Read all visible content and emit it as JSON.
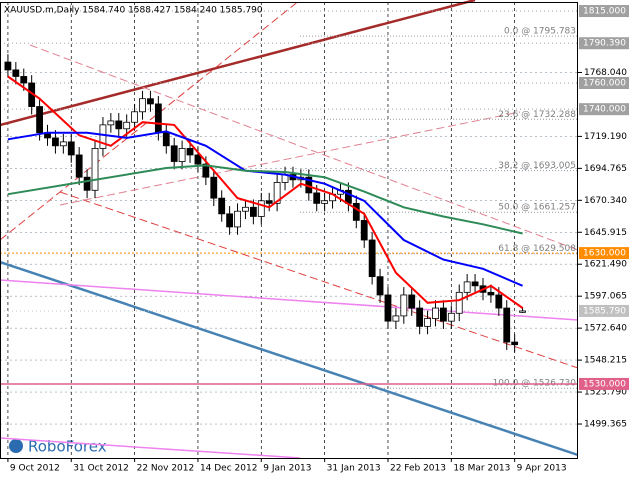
{
  "chart_data": {
    "type": "candlestick",
    "title": "XAUUSD.m,Daily  1584.740 1588.427 1584.240 1585.790",
    "watermark": "RoboForex",
    "open": [
      1776,
      1770,
      1765,
      1760,
      1742,
      1722,
      1718,
      1712,
      1715,
      1705,
      1688,
      1678,
      1710,
      1728,
      1731,
      1725,
      1730,
      1738,
      1748,
      1744,
      1722,
      1712,
      1700,
      1710,
      1705,
      1698,
      1688,
      1672,
      1660,
      1650,
      1662,
      1665,
      1658,
      1670,
      1668,
      1684,
      1690,
      1686,
      1688,
      1676,
      1668,
      1670,
      1675,
      1678,
      1668,
      1655,
      1640,
      1612,
      1598,
      1578,
      1582,
      1598,
      1588,
      1574,
      1580,
      1588,
      1578,
      1584,
      1600,
      1608,
      1605,
      1600,
      1598,
      1588,
      1562,
      1584.74
    ],
    "high": [
      1782,
      1776,
      1771,
      1766,
      1748,
      1728,
      1724,
      1721,
      1721,
      1711,
      1694,
      1716,
      1734,
      1737,
      1737,
      1736,
      1744,
      1754,
      1754,
      1750,
      1728,
      1718,
      1716,
      1716,
      1711,
      1704,
      1694,
      1678,
      1666,
      1668,
      1671,
      1671,
      1676,
      1676,
      1690,
      1696,
      1696,
      1694,
      1694,
      1682,
      1676,
      1681,
      1684,
      1684,
      1674,
      1661,
      1646,
      1618,
      1604,
      1588,
      1604,
      1604,
      1594,
      1586,
      1594,
      1594,
      1590,
      1606,
      1614,
      1614,
      1611,
      1606,
      1604,
      1594,
      1568,
      1588.427
    ],
    "low": [
      1764,
      1759,
      1754,
      1736,
      1716,
      1712,
      1706,
      1706,
      1699,
      1682,
      1672,
      1672,
      1704,
      1722,
      1719,
      1719,
      1724,
      1732,
      1738,
      1716,
      1706,
      1694,
      1694,
      1699,
      1692,
      1682,
      1666,
      1654,
      1644,
      1644,
      1656,
      1652,
      1652,
      1662,
      1662,
      1678,
      1680,
      1680,
      1670,
      1662,
      1662,
      1664,
      1669,
      1662,
      1649,
      1634,
      1606,
      1592,
      1572,
      1572,
      1576,
      1582,
      1568,
      1568,
      1574,
      1572,
      1572,
      1578,
      1594,
      1599,
      1594,
      1592,
      1582,
      1556,
      1554,
      1584.24
    ],
    "close": [
      1770,
      1765,
      1760,
      1742,
      1722,
      1718,
      1712,
      1715,
      1705,
      1688,
      1678,
      1710,
      1728,
      1731,
      1725,
      1730,
      1738,
      1748,
      1744,
      1722,
      1712,
      1700,
      1710,
      1705,
      1698,
      1688,
      1672,
      1660,
      1650,
      1662,
      1665,
      1658,
      1670,
      1668,
      1684,
      1690,
      1686,
      1688,
      1676,
      1668,
      1670,
      1675,
      1678,
      1668,
      1655,
      1640,
      1612,
      1598,
      1578,
      1582,
      1598,
      1588,
      1574,
      1580,
      1588,
      1578,
      1584,
      1600,
      1608,
      1605,
      1600,
      1598,
      1588,
      1562,
      1560,
      1585.79
    ],
    "series": [
      {
        "color": "#ff0000",
        "x": [
          0,
          4,
          9,
          13,
          17,
          21,
          25,
          29,
          33,
          37,
          41,
          45,
          49,
          53,
          57,
          61,
          65
        ],
        "values": [
          1765,
          1748,
          1720,
          1712,
          1730,
          1728,
          1700,
          1672,
          1665,
          1683,
          1675,
          1660,
          1615,
          1592,
          1594,
          1605,
          1588
        ]
      },
      {
        "color": "#0000ff",
        "x": [
          0,
          5,
          10,
          15,
          20,
          25,
          30,
          35,
          40,
          45,
          50,
          55,
          60,
          65
        ],
        "values": [
          1717,
          1722,
          1722,
          1718,
          1723,
          1712,
          1693,
          1690,
          1683,
          1670,
          1640,
          1625,
          1618,
          1605
        ]
      },
      {
        "color": "#2e8b57",
        "x": [
          0,
          10,
          20,
          25,
          30,
          35,
          40,
          45,
          50,
          55,
          60,
          65
        ],
        "values": [
          1675,
          1685,
          1695,
          1697,
          1693,
          1692,
          1688,
          1677,
          1665,
          1658,
          1652,
          1645
        ]
      }
    ],
    "xlim": [
      -1,
      72
    ],
    "ylim": [
      1473.4,
      1821.9
    ],
    "xticks": [
      {
        "value": 0,
        "label": "9 Oct 2012"
      },
      {
        "value": 8,
        "label": "31 Oct 2012"
      },
      {
        "value": 16,
        "label": "22 Nov 2012"
      },
      {
        "value": 24,
        "label": "14 Dec 2012"
      },
      {
        "value": 32,
        "label": "9 Jan 2013"
      },
      {
        "value": 40,
        "label": "31 Jan 2013"
      },
      {
        "value": 48,
        "label": "22 Feb 2013"
      },
      {
        "value": 56,
        "label": "18 Mar 2013"
      },
      {
        "value": 64,
        "label": "9 Apr 2013"
      }
    ],
    "yticks": [
      {
        "value": 1768.04,
        "label": "1768.040"
      },
      {
        "value": 1719.19,
        "label": "1719.190"
      },
      {
        "value": 1694.765,
        "label": "1694.765"
      },
      {
        "value": 1670.34,
        "label": "1670.340"
      },
      {
        "value": 1645.915,
        "label": "1645.915"
      },
      {
        "value": 1621.49,
        "label": "1621.490"
      },
      {
        "value": 1597.065,
        "label": "1597.065"
      },
      {
        "value": 1572.64,
        "label": "1572.640"
      },
      {
        "value": 1548.215,
        "label": "1548.215"
      },
      {
        "value": 1523.79,
        "label": "1523.790"
      },
      {
        "value": 1499.365,
        "label": "1499.365"
      }
    ],
    "grid": true,
    "levels": [
      {
        "value": 1815,
        "label": "1815.000",
        "color": "#a0a0a0"
      },
      {
        "value": 1790.39,
        "label": "1790.390",
        "color": "#a0a0a0"
      },
      {
        "value": 1760,
        "label": "1760.000",
        "color": "#a0a0a0"
      },
      {
        "value": 1740,
        "label": "1740.000",
        "color": "#a0a0a0"
      },
      {
        "value": 1630,
        "label": "1630.000",
        "color": "#ff8c00"
      },
      {
        "value": 1585.79,
        "label": "1585.790",
        "color": "#c0c0c0"
      },
      {
        "value": 1530,
        "label": "1530.000",
        "color": "#e0608a"
      }
    ],
    "fib": [
      {
        "value": 1795.783,
        "label": "0.0 @ 1795.783"
      },
      {
        "value": 1732.288,
        "label": "23.6 @ 1732.288"
      },
      {
        "value": 1693.005,
        "label": "38.2 @ 1693.005"
      },
      {
        "value": 1661.257,
        "label": "50.0 @ 1661.257"
      },
      {
        "value": 1629.508,
        "label": "61.8 @ 1629.508"
      },
      {
        "value": 1526.73,
        "label": "100.0 @ 1526.730"
      }
    ]
  }
}
